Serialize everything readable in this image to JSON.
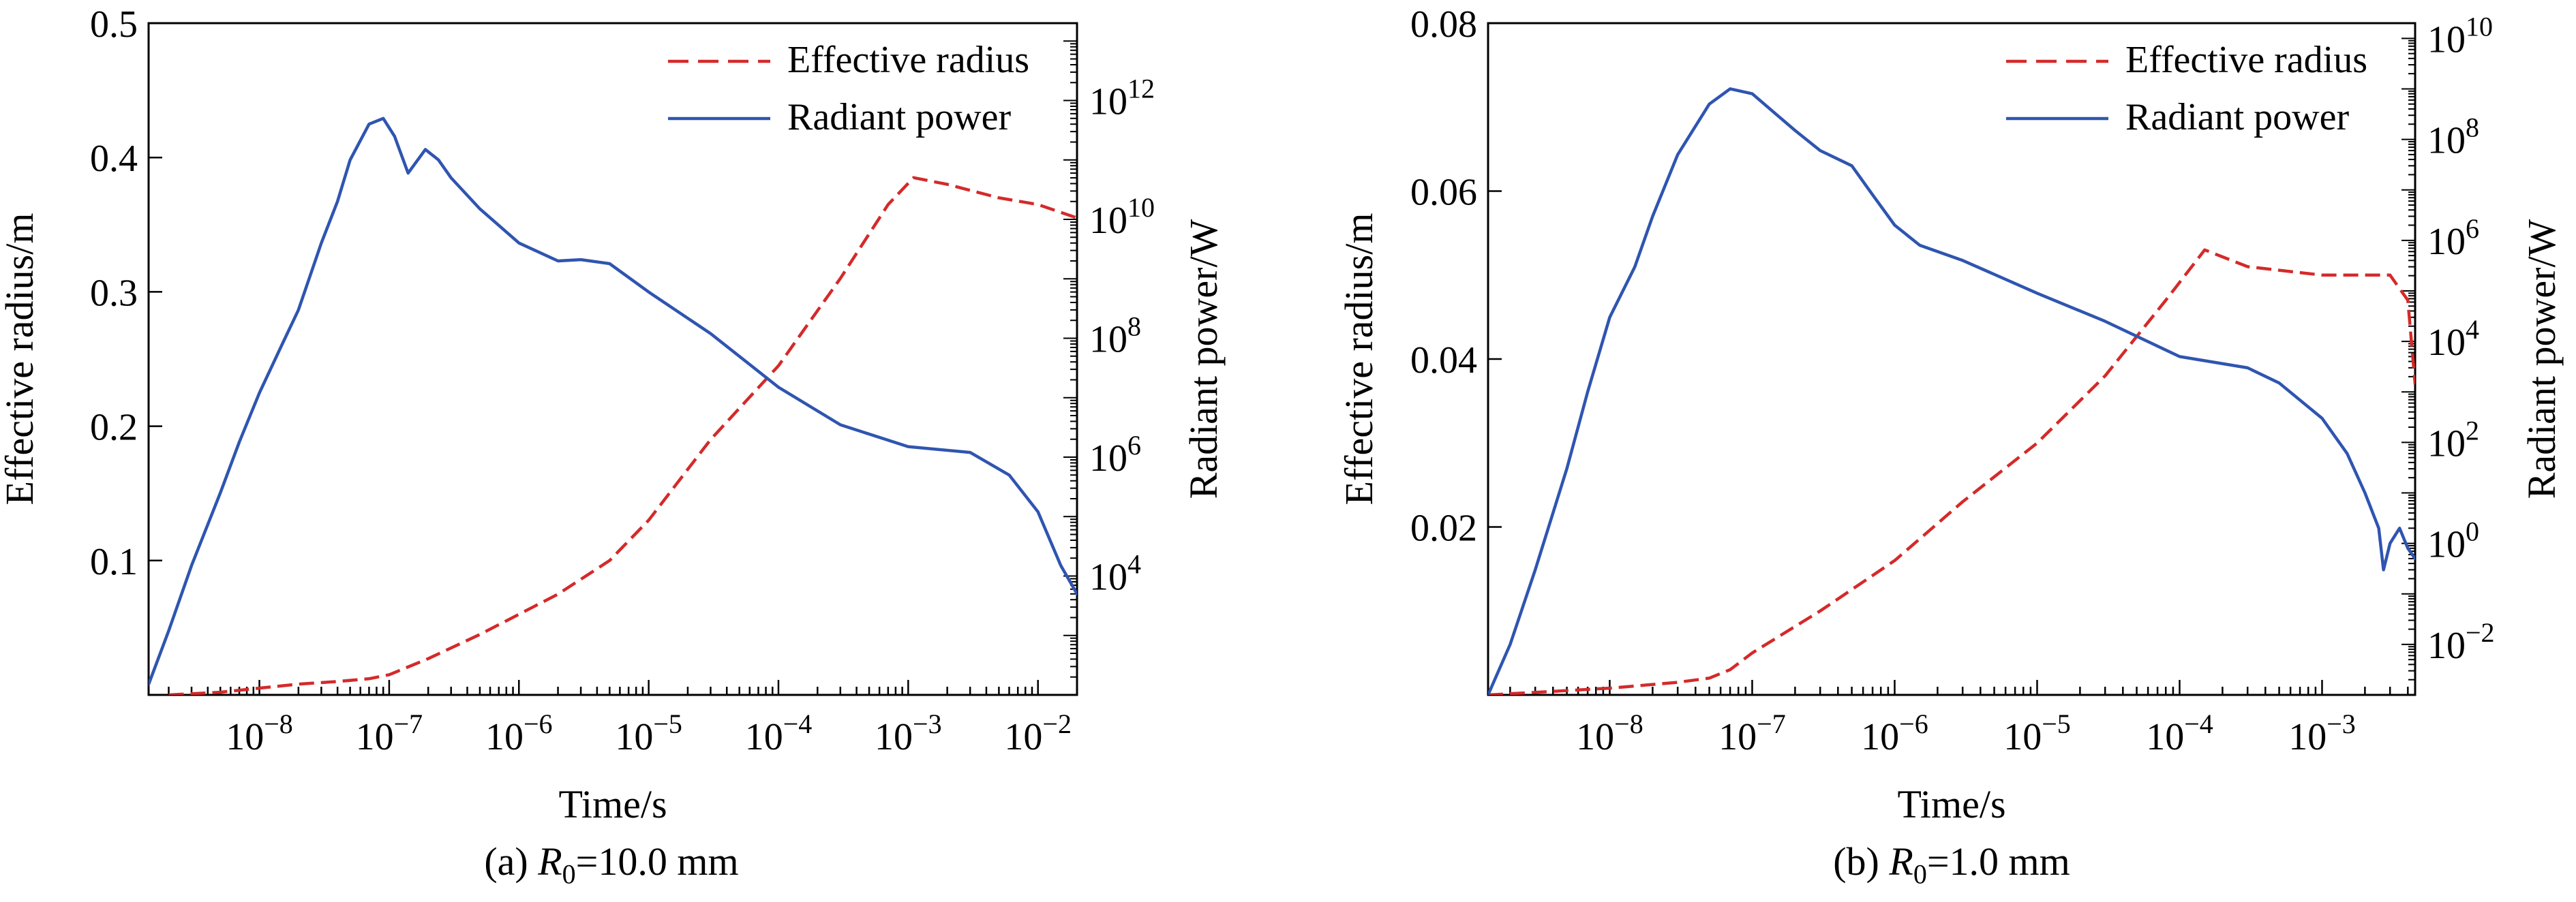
{
  "chart_data": [
    {
      "id": "a",
      "type": "line",
      "caption": {
        "prefix": "(a) ",
        "var": "R",
        "sub": "0",
        "suffix": "=10.0 mm"
      },
      "xlabel": "Time/s",
      "ylabel_left": "Effective radius/m",
      "ylabel_right": "Radiant power/W",
      "x_scale": "log",
      "xlim": [
        1.4e-09,
        0.02
      ],
      "x_ticks": [
        {
          "value": 1e-08,
          "base": "10",
          "exp": "−8"
        },
        {
          "value": 1e-07,
          "base": "10",
          "exp": "−7"
        },
        {
          "value": 1e-06,
          "base": "10",
          "exp": "−6"
        },
        {
          "value": 1e-05,
          "base": "10",
          "exp": "−5"
        },
        {
          "value": 0.0001,
          "base": "10",
          "exp": "−4"
        },
        {
          "value": 0.001,
          "base": "10",
          "exp": "−3"
        },
        {
          "value": 0.01,
          "base": "10",
          "exp": "−2"
        }
      ],
      "y_left_scale": "linear",
      "y_left_lim": [
        0.0,
        0.5
      ],
      "y_left_ticks": [
        {
          "value": 0.1,
          "label": "0.1"
        },
        {
          "value": 0.2,
          "label": "0.2"
        },
        {
          "value": 0.3,
          "label": "0.3"
        },
        {
          "value": 0.4,
          "label": "0.4"
        },
        {
          "value": 0.5,
          "label": "0.5"
        }
      ],
      "y_right_scale": "log",
      "y_right_lim": [
        100.0,
        20000000000000.0
      ],
      "y_right_ticks": [
        {
          "value": 10000.0,
          "base": "10",
          "exp": "4"
        },
        {
          "value": 1000000.0,
          "base": "10",
          "exp": "6"
        },
        {
          "value": 100000000.0,
          "base": "10",
          "exp": "8"
        },
        {
          "value": 10000000000.0,
          "base": "10",
          "exp": "10"
        },
        {
          "value": 1000000000000.0,
          "base": "10",
          "exp": "12"
        }
      ],
      "legend": "top-right",
      "series": [
        {
          "name": "Effective radius",
          "axis": "left",
          "style": "dashed",
          "color": "#d42a2a",
          "x": [
            2e-09,
            5e-09,
            1e-08,
            2e-08,
            4e-08,
            7e-08,
            1e-07,
            2e-07,
            5e-07,
            1e-06,
            2e-06,
            5e-06,
            1e-05,
            3e-05,
            0.0001,
            0.0003,
            0.0007,
            0.0011,
            0.002,
            0.005,
            0.01,
            0.02
          ],
          "y": [
            0.0,
            0.002,
            0.005,
            0.008,
            0.01,
            0.012,
            0.015,
            0.027,
            0.045,
            0.06,
            0.075,
            0.1,
            0.13,
            0.19,
            0.245,
            0.31,
            0.365,
            0.385,
            0.38,
            0.37,
            0.365,
            0.355
          ]
        },
        {
          "name": "Radiant power",
          "axis": "right",
          "style": "solid",
          "color": "#2f55b0",
          "x": [
            1.4e-09,
            2e-09,
            3e-09,
            5e-09,
            7e-09,
            1e-08,
            1.5e-08,
            2e-08,
            3e-08,
            4e-08,
            5e-08,
            7e-08,
            9e-08,
            1.1e-07,
            1.4e-07,
            1.9e-07,
            2.4e-07,
            3e-07,
            5e-07,
            1e-06,
            2e-06,
            3e-06,
            5e-06,
            1e-05,
            3e-05,
            0.0001,
            0.0003,
            0.001,
            0.003,
            0.006,
            0.01,
            0.015,
            0.02
          ],
          "y": [
            150.0,
            1200.0,
            15000.0,
            250000.0,
            1800000.0,
            12000000.0,
            80000000.0,
            300000000.0,
            4000000000.0,
            20000000000.0,
            100000000000.0,
            400000000000.0,
            500000000000.0,
            250000000000.0,
            60000000000.0,
            150000000000.0,
            100000000000.0,
            50000000000.0,
            15000000000.0,
            4000000000.0,
            2000000000.0,
            2100000000.0,
            1800000000.0,
            600000000.0,
            120000000.0,
            15000000.0,
            3500000.0,
            1500000.0,
            1200000.0,
            500000.0,
            120000.0,
            15000.0,
            5000.0
          ]
        }
      ]
    },
    {
      "id": "b",
      "type": "line",
      "caption": {
        "prefix": "(b) ",
        "var": "R",
        "sub": "0",
        "suffix": "=1.0 mm"
      },
      "xlabel": "Time/s",
      "ylabel_left": "Effective radius/m",
      "ylabel_right": "Radiant power/W",
      "x_scale": "log",
      "xlim": [
        1.4e-09,
        0.0045
      ],
      "x_ticks": [
        {
          "value": 1e-08,
          "base": "10",
          "exp": "−8"
        },
        {
          "value": 1e-07,
          "base": "10",
          "exp": "−7"
        },
        {
          "value": 1e-06,
          "base": "10",
          "exp": "−6"
        },
        {
          "value": 1e-05,
          "base": "10",
          "exp": "−5"
        },
        {
          "value": 0.0001,
          "base": "10",
          "exp": "−4"
        },
        {
          "value": 0.001,
          "base": "10",
          "exp": "−3"
        }
      ],
      "y_left_scale": "linear",
      "y_left_lim": [
        0.0,
        0.08
      ],
      "y_left_ticks": [
        {
          "value": 0.02,
          "label": "0.02"
        },
        {
          "value": 0.04,
          "label": "0.04"
        },
        {
          "value": 0.06,
          "label": "0.06"
        },
        {
          "value": 0.08,
          "label": "0.08"
        }
      ],
      "y_right_scale": "log",
      "y_right_lim": [
        0.001,
        20000000000.0
      ],
      "y_right_ticks": [
        {
          "value": 0.01,
          "base": "10",
          "exp": "−2"
        },
        {
          "value": 1.0,
          "base": "10",
          "exp": "0"
        },
        {
          "value": 100.0,
          "base": "10",
          "exp": "2"
        },
        {
          "value": 10000.0,
          "base": "10",
          "exp": "4"
        },
        {
          "value": 1000000.0,
          "base": "10",
          "exp": "6"
        },
        {
          "value": 100000000.0,
          "base": "10",
          "exp": "8"
        },
        {
          "value": 10000000000.0,
          "base": "10",
          "exp": "10"
        }
      ],
      "legend": "top-right",
      "series": [
        {
          "name": "Effective radius",
          "axis": "left",
          "style": "dashed",
          "color": "#d42a2a",
          "x": [
            1.4e-09,
            3e-09,
            1e-08,
            3e-08,
            5e-08,
            7e-08,
            1e-07,
            3e-07,
            1e-06,
            3e-06,
            1e-05,
            3e-05,
            8e-05,
            0.00015,
            0.0003,
            0.001,
            0.002,
            0.003,
            0.004,
            0.0045
          ],
          "y": [
            0.0,
            0.0003,
            0.0008,
            0.0015,
            0.002,
            0.003,
            0.005,
            0.01,
            0.016,
            0.023,
            0.03,
            0.038,
            0.047,
            0.053,
            0.051,
            0.05,
            0.05,
            0.05,
            0.047,
            0.037
          ]
        },
        {
          "name": "Radiant power",
          "axis": "right",
          "style": "solid",
          "color": "#2f55b0",
          "x": [
            1.4e-09,
            2e-09,
            3e-09,
            5e-09,
            7e-09,
            1e-08,
            1.5e-08,
            2e-08,
            3e-08,
            5e-08,
            7e-08,
            1e-07,
            1.5e-07,
            2e-07,
            3e-07,
            5e-07,
            7e-07,
            1e-06,
            1.5e-06,
            3e-06,
            1e-05,
            3e-05,
            0.0001,
            0.0003,
            0.0005,
            0.001,
            0.0015,
            0.002,
            0.0025,
            0.0027,
            0.003,
            0.0035,
            0.004,
            0.0045
          ],
          "y": [
            0.001,
            0.01,
            0.3,
            30.0,
            1000.0,
            30000.0,
            300000.0,
            3000000.0,
            50000000.0,
            500000000.0,
            1000000000.0,
            800000000.0,
            300000000.0,
            150000000.0,
            60000000.0,
            30000000.0,
            8000000.0,
            2000000.0,
            800000.0,
            400000.0,
            90000.0,
            25000.0,
            5000.0,
            3000.0,
            1500.0,
            300.0,
            60.0,
            10.0,
            2,
            0.3,
            1,
            2,
            0.8,
            0.5
          ]
        }
      ]
    }
  ]
}
